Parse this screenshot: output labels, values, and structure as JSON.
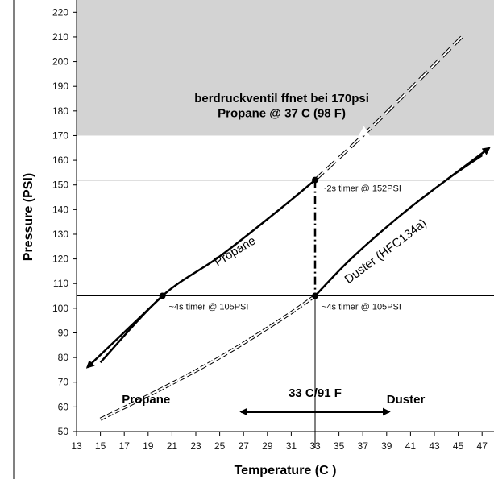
{
  "chart_data": {
    "type": "line",
    "xlabel": "Temperature (C )",
    "ylabel": "Pressure (PSI)",
    "xlim": [
      13,
      48
    ],
    "ylim": [
      50,
      225
    ],
    "xticks": [
      "13",
      "15",
      "17",
      "19",
      "21",
      "23",
      "25",
      "27",
      "29",
      "31",
      "33",
      "35",
      "37",
      "39",
      "41",
      "43",
      "45",
      "47"
    ],
    "yticks": [
      "50",
      "60",
      "70",
      "80",
      "90",
      "100",
      "110",
      "120",
      "130",
      "140",
      "150",
      "160",
      "170",
      "180",
      "190",
      "200",
      "210",
      "220"
    ],
    "shaded_region": {
      "y_from": 170,
      "y_to": 225,
      "color": "#d3d3d3",
      "line1": "berdruckventil   ffnet bei 170psi",
      "line2": "Propane @ 37  C (98  F)"
    },
    "reference_lines": {
      "horizontal": [
        152,
        105
      ],
      "vertical": [
        33
      ]
    },
    "series": [
      {
        "name": "Propane",
        "style": "solid",
        "color": "#000000",
        "x": [
          15,
          20.2,
          25,
          30,
          33
        ],
        "y": [
          78,
          105,
          121,
          140,
          152
        ]
      },
      {
        "name": "Propane",
        "style": "dashed",
        "color": "#000000",
        "x": [
          33,
          37,
          41,
          45.5
        ],
        "y": [
          152,
          170,
          189,
          211
        ]
      },
      {
        "name": "Duster (HFC134a)",
        "style": "solid",
        "color": "#000000",
        "x": [
          33,
          36,
          40,
          44,
          47
        ],
        "y": [
          105,
          120,
          137,
          152,
          162
        ]
      },
      {
        "name": "Duster (HFC134a)",
        "style": "dashed",
        "color": "#000000",
        "x": [
          15,
          20,
          25,
          30,
          33
        ],
        "y": [
          55,
          67,
          80,
          95,
          105
        ]
      }
    ],
    "points": [
      {
        "x": 20.2,
        "y": 105,
        "label": "~4s timer @ 105PSI"
      },
      {
        "x": 33,
        "y": 105,
        "label": "~4s timer @ 105PSI"
      },
      {
        "x": 33,
        "y": 152,
        "label": "~2s timer @ 152PSI"
      }
    ],
    "annotations": {
      "propane_left": "Propane",
      "duster_right": "Duster",
      "center": "33 C/91 F",
      "curve_propane": "Propane",
      "curve_duster": "Duster (HFC134a)"
    }
  }
}
